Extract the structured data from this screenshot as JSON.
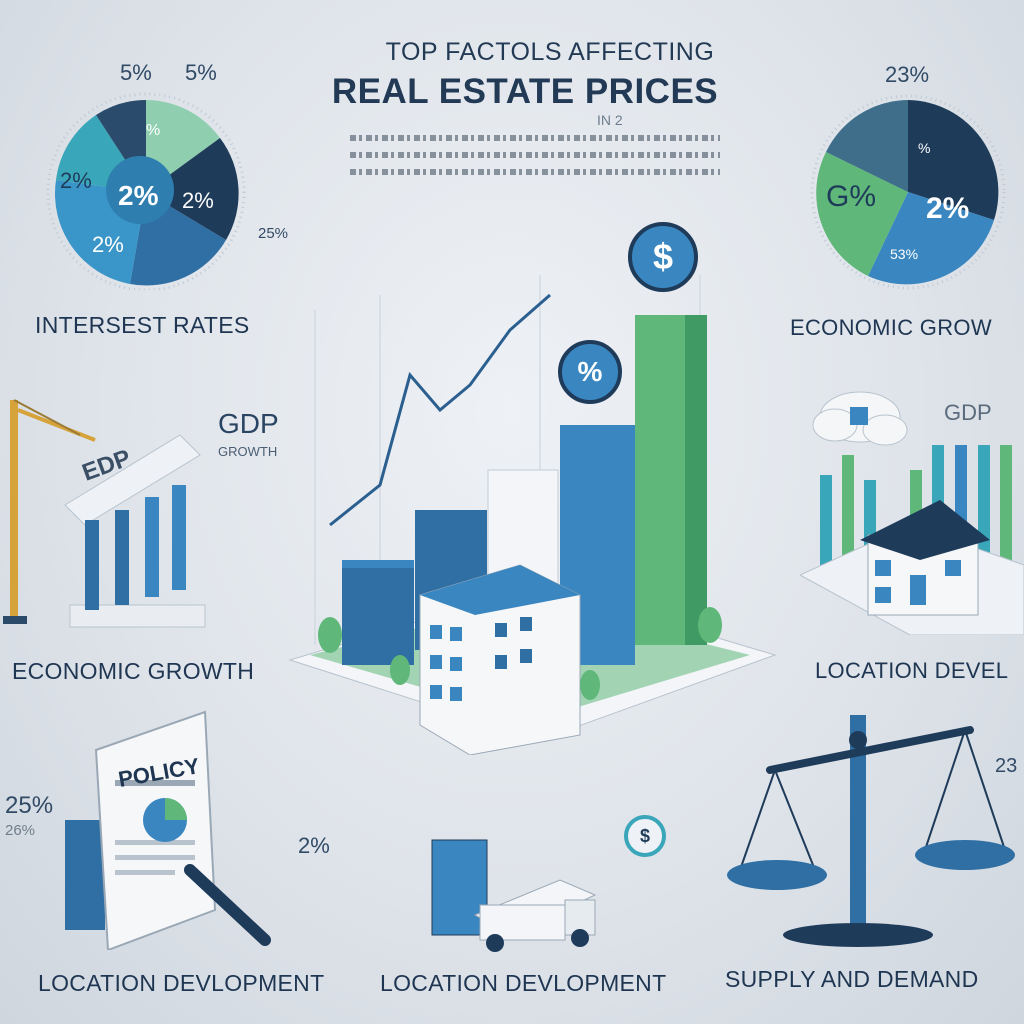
{
  "header": {
    "title_top": "TOP FACTOLS AFFECTING",
    "title_main": "REAL ESTATE PRICES",
    "subtitle_fragment": "IN 2"
  },
  "left_pie": {
    "top_labels": [
      "5%",
      "5%"
    ],
    "slice_labels": [
      "%",
      "2%",
      "2%",
      "2%",
      "2%"
    ],
    "side_label": "25%",
    "caption": "INTERSEST RATES"
  },
  "right_pie": {
    "top_label": "23%",
    "slice_labels": [
      "%",
      "G%",
      "2%",
      "53%"
    ],
    "caption": "ECONOMIC GROW"
  },
  "left_middle": {
    "building_sign": "EDP",
    "gdp_label": "GDP",
    "gdp_sub": "GROWTH",
    "caption": "ECONOMIC GROWTH"
  },
  "right_middle": {
    "gdp_label": "GDP",
    "caption": "LOCATION DEVEL"
  },
  "center": {
    "badge_top": "$",
    "badge_mid": "%",
    "badge_low": "$"
  },
  "bottom": {
    "policy_label": "POLICY",
    "left_pct_1": "25%",
    "left_pct_2": "26%",
    "mid_pct": "2%",
    "right_pct": "23",
    "caption_left": "LOCATION DEVLOPMENT",
    "caption_mid": "LOCATION DEVLOPMENT",
    "caption_right": "SUPPLY AND DEMAND"
  },
  "colors": {
    "navy": "#1f3b5a",
    "blue": "#3a86c0",
    "teal": "#3aa6b9",
    "green": "#5fb87a"
  }
}
